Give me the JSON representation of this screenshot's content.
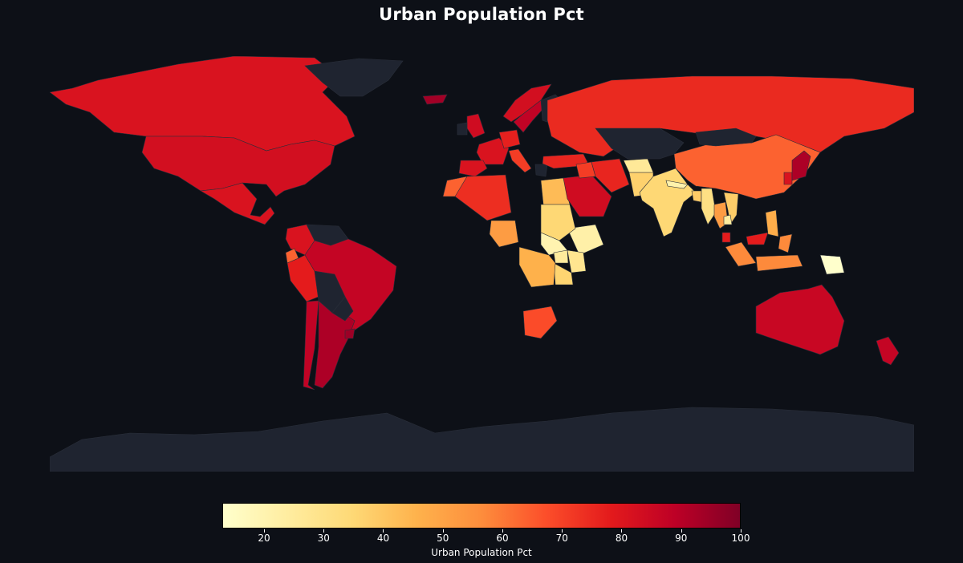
{
  "title": "Urban Population Pct",
  "background_color": "#0d1017",
  "no_data_color": "#1f2430",
  "colormap": [
    "#ffffcc",
    "#ffeda0",
    "#fed976",
    "#feb24c",
    "#fd8d3c",
    "#fc4e2a",
    "#e31a1c",
    "#bd0026",
    "#800026"
  ],
  "colorbar": {
    "label": "Urban Population Pct",
    "min": 13,
    "max": 100,
    "ticks": [
      "20",
      "30",
      "40",
      "50",
      "60",
      "70",
      "80",
      "90",
      "100"
    ]
  },
  "chart_data": {
    "type": "choropleth",
    "title": "Urban Population Pct",
    "value_label": "Urban Population Pct",
    "range": [
      13,
      100
    ],
    "legend": "bottom colorbar",
    "regions": [
      {
        "name": "Canada",
        "value": 81
      },
      {
        "name": "United States",
        "value": 83
      },
      {
        "name": "Mexico",
        "value": 81
      },
      {
        "name": "Greenland",
        "value": null
      },
      {
        "name": "Colombia",
        "value": 81
      },
      {
        "name": "Venezuela",
        "value": null
      },
      {
        "name": "Ecuador",
        "value": 64
      },
      {
        "name": "Peru",
        "value": 78
      },
      {
        "name": "Bolivia",
        "value": null
      },
      {
        "name": "Brazil",
        "value": 87
      },
      {
        "name": "Chile",
        "value": 88
      },
      {
        "name": "Argentina",
        "value": 92
      },
      {
        "name": "Uruguay",
        "value": 95
      },
      {
        "name": "Paraguay",
        "value": null
      },
      {
        "name": "Iceland",
        "value": 94
      },
      {
        "name": "United Kingdom",
        "value": 84
      },
      {
        "name": "Ireland",
        "value": null
      },
      {
        "name": "Norway",
        "value": 83
      },
      {
        "name": "Sweden",
        "value": 88
      },
      {
        "name": "Finland",
        "value": null
      },
      {
        "name": "France",
        "value": 81
      },
      {
        "name": "Spain",
        "value": 81
      },
      {
        "name": "Germany",
        "value": 77
      },
      {
        "name": "Italy",
        "value": 71
      },
      {
        "name": "Greece",
        "value": null
      },
      {
        "name": "Russia",
        "value": 75
      },
      {
        "name": "Turkey",
        "value": 76
      },
      {
        "name": "Morocco",
        "value": 64
      },
      {
        "name": "Algeria",
        "value": 74
      },
      {
        "name": "Egypt",
        "value": 43
      },
      {
        "name": "Nigeria",
        "value": 52
      },
      {
        "name": "Ethiopia",
        "value": 22
      },
      {
        "name": "Sudan",
        "value": 35
      },
      {
        "name": "South Sudan",
        "value": 20
      },
      {
        "name": "Kenya",
        "value": 28
      },
      {
        "name": "Uganda",
        "value": 25
      },
      {
        "name": "Tanzania",
        "value": 36
      },
      {
        "name": "DR Congo",
        "value": 46
      },
      {
        "name": "South Africa",
        "value": 68
      },
      {
        "name": "Saudi Arabia",
        "value": 84
      },
      {
        "name": "Iraq",
        "value": 71
      },
      {
        "name": "Iran",
        "value": 76
      },
      {
        "name": "Pakistan",
        "value": 37
      },
      {
        "name": "Afghanistan",
        "value": 26
      },
      {
        "name": "India",
        "value": 35
      },
      {
        "name": "Nepal",
        "value": 21
      },
      {
        "name": "Bangladesh",
        "value": 39
      },
      {
        "name": "Myanmar",
        "value": 31
      },
      {
        "name": "Thailand",
        "value": 52
      },
      {
        "name": "Vietnam",
        "value": 38
      },
      {
        "name": "Cambodia",
        "value": 24
      },
      {
        "name": "Malaysia",
        "value": 78
      },
      {
        "name": "Indonesia",
        "value": 57
      },
      {
        "name": "Philippines",
        "value": 47
      },
      {
        "name": "Papua New Guinea",
        "value": 13
      },
      {
        "name": "China",
        "value": 64
      },
      {
        "name": "Mongolia",
        "value": null
      },
      {
        "name": "Kazakhstan",
        "value": null
      },
      {
        "name": "South Korea",
        "value": 81
      },
      {
        "name": "Japan",
        "value": 92
      },
      {
        "name": "Australia",
        "value": 86
      },
      {
        "name": "New Zealand",
        "value": 87
      },
      {
        "name": "Antarctica",
        "value": null
      }
    ]
  }
}
